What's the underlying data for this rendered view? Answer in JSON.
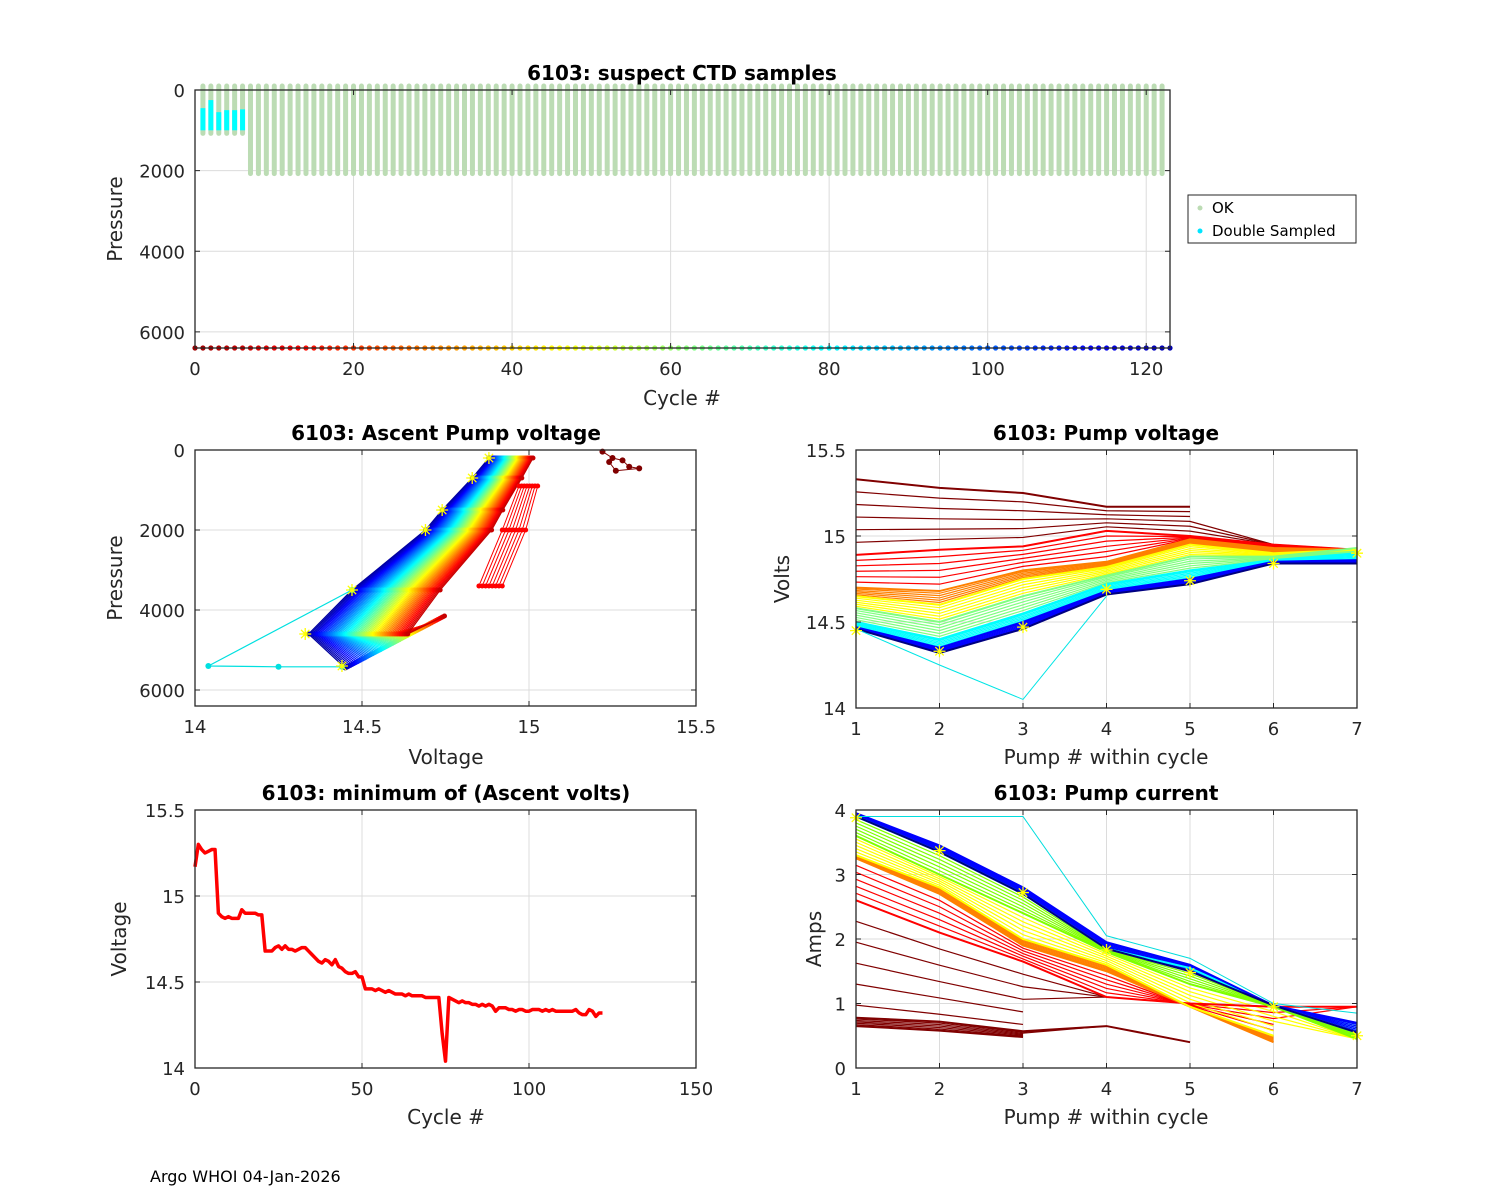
{
  "footer": "Argo WHOI 04-Jan-2026",
  "chart_data": [
    {
      "id": "suspect",
      "type": "bar",
      "title": "6103: suspect CTD samples",
      "xlabel": "Cycle #",
      "ylabel": "Pressure",
      "xlim": [
        0,
        123
      ],
      "ylim": [
        0,
        6400
      ],
      "y_reversed": true,
      "xticks": [
        0,
        20,
        40,
        60,
        80,
        100,
        120
      ],
      "yticks": [
        0,
        2000,
        4000,
        6000
      ],
      "grid": true,
      "legend": {
        "position": "outside-right",
        "entries": [
          {
            "label": "OK",
            "color": "#bcdcb4"
          },
          {
            "label": "Double Sampled",
            "color": "#00ffff"
          }
        ]
      },
      "ok_profiles": {
        "first_cycle": 1,
        "last_cycle": 122,
        "pressure_range": [
          0,
          2000
        ],
        "partial_cycles_max_pressure": 1000,
        "partial_cycles": [
          1,
          2,
          3,
          4,
          5,
          6
        ]
      },
      "double_sampled": [
        {
          "cycle": 1,
          "pressure_range": [
            450,
            1000
          ]
        },
        {
          "cycle": 2,
          "pressure_range": [
            250,
            1000
          ]
        },
        {
          "cycle": 3,
          "pressure_range": [
            550,
            1000
          ]
        },
        {
          "cycle": 4,
          "pressure_range": [
            500,
            1000
          ]
        },
        {
          "cycle": 5,
          "pressure_range": [
            500,
            1000
          ]
        },
        {
          "cycle": 6,
          "pressure_range": [
            480,
            1000
          ]
        }
      ],
      "cycle_color_markers": {
        "pressure": 6400,
        "cycles": [
          0,
          123
        ],
        "colormap": "jet-reversed"
      }
    },
    {
      "id": "ascent",
      "type": "line",
      "title": "6103: Ascent Pump voltage",
      "xlabel": "Voltage",
      "ylabel": "Pressure",
      "xlim": [
        14,
        15.5
      ],
      "ylim": [
        0,
        6400
      ],
      "y_reversed": true,
      "xticks": [
        14,
        14.5,
        15,
        15.5
      ],
      "xtick_labels": [
        "14",
        "14.5",
        "15",
        "15.5"
      ],
      "yticks": [
        0,
        2000,
        4000,
        6000
      ],
      "grid": true,
      "yellow_star_points": [
        [
          14.88,
          200
        ],
        [
          14.83,
          700
        ],
        [
          14.74,
          1500
        ],
        [
          14.69,
          2000
        ],
        [
          14.47,
          3500
        ],
        [
          14.33,
          4600
        ],
        [
          14.44,
          5400
        ]
      ],
      "family_note": "one line per cycle, colored by cycle number (jet colormap, red=early, blue=late)",
      "outlier_cyan": [
        [
          14.44,
          5420
        ],
        [
          14.25,
          5420
        ],
        [
          14.04,
          5400
        ],
        [
          14.47,
          3500
        ]
      ],
      "early_dark_red_cluster": {
        "voltage_range": [
          15.22,
          15.33
        ],
        "pressure_range": [
          0,
          550
        ]
      }
    },
    {
      "id": "pumpvolt",
      "type": "line",
      "title": "6103: Pump voltage",
      "xlabel": "Pump # within cycle",
      "ylabel": "Volts",
      "xlim": [
        1,
        7
      ],
      "ylim": [
        14,
        15.5
      ],
      "xticks": [
        1,
        2,
        3,
        4,
        5,
        6,
        7
      ],
      "yticks": [
        14,
        14.5,
        15,
        15.5
      ],
      "ytick_labels": [
        "14",
        "14.5",
        "15",
        "15.5"
      ],
      "grid": true,
      "x": [
        1,
        2,
        3,
        4,
        5,
        6,
        7
      ],
      "representative_series": [
        {
          "name": "early (dark red)",
          "color": "#800000",
          "values": [
            15.33,
            15.28,
            15.25,
            15.17,
            15.17,
            null,
            null
          ]
        },
        {
          "name": "red group",
          "color": "#ff0000",
          "values": [
            14.89,
            14.92,
            14.94,
            15.03,
            15.0,
            14.95,
            14.92
          ]
        },
        {
          "name": "orange group",
          "color": "#ff8000",
          "values": [
            14.7,
            14.68,
            14.8,
            14.85,
            14.98,
            14.93,
            14.92
          ]
        },
        {
          "name": "yellow group",
          "color": "#ffff00",
          "values": [
            14.65,
            14.6,
            14.75,
            14.82,
            14.95,
            14.9,
            14.92
          ]
        },
        {
          "name": "green group",
          "color": "#80ff80",
          "values": [
            14.58,
            14.5,
            14.65,
            14.77,
            14.88,
            14.88,
            14.93
          ]
        },
        {
          "name": "cyan group",
          "color": "#00ffff",
          "values": [
            14.5,
            14.4,
            14.55,
            14.72,
            14.8,
            14.86,
            14.9
          ]
        },
        {
          "name": "blue group",
          "color": "#0000ff",
          "values": [
            14.47,
            14.35,
            14.5,
            14.68,
            14.75,
            14.85,
            14.86
          ]
        },
        {
          "name": "late (navy)",
          "color": "#000080",
          "values": [
            14.46,
            14.32,
            14.46,
            14.66,
            14.72,
            14.84,
            14.84
          ]
        },
        {
          "name": "cyan outlier",
          "color": "#00e5e5",
          "values": [
            14.46,
            14.25,
            14.05,
            14.65,
            null,
            null,
            null
          ]
        }
      ],
      "yellow_star_points": [
        [
          1,
          14.45
        ],
        [
          2,
          14.33
        ],
        [
          3,
          14.47
        ],
        [
          4,
          14.69
        ],
        [
          5,
          14.74
        ],
        [
          6,
          14.84
        ],
        [
          7,
          14.9
        ]
      ]
    },
    {
      "id": "minvolt",
      "type": "line",
      "title": "6103: minimum of (Ascent volts)",
      "xlabel": "Cycle #",
      "ylabel": "Voltage",
      "xlim": [
        0,
        150
      ],
      "ylim": [
        14,
        15.5
      ],
      "xticks": [
        0,
        50,
        100,
        150
      ],
      "yticks": [
        14,
        14.5,
        15,
        15.5
      ],
      "ytick_labels": [
        "14",
        "14.5",
        "15",
        "15.5"
      ],
      "grid": true,
      "color": "#ff0000",
      "x": [
        0,
        1,
        2,
        3,
        4,
        5,
        6,
        7,
        8,
        9,
        10,
        11,
        12,
        13,
        14,
        15,
        16,
        17,
        18,
        19,
        20,
        21,
        22,
        23,
        24,
        25,
        26,
        27,
        28,
        29,
        30,
        31,
        32,
        33,
        34,
        35,
        36,
        37,
        38,
        39,
        40,
        41,
        42,
        43,
        44,
        45,
        46,
        47,
        48,
        49,
        50,
        51,
        52,
        53,
        54,
        55,
        56,
        57,
        58,
        59,
        60,
        61,
        62,
        63,
        64,
        65,
        66,
        67,
        68,
        69,
        70,
        71,
        72,
        73,
        74,
        75,
        76,
        77,
        78,
        79,
        80,
        81,
        82,
        83,
        84,
        85,
        86,
        87,
        88,
        89,
        90,
        91,
        92,
        93,
        94,
        95,
        96,
        97,
        98,
        99,
        100,
        101,
        102,
        103,
        104,
        105,
        106,
        107,
        108,
        109,
        110,
        111,
        112,
        113,
        114,
        115,
        116,
        117,
        118,
        119,
        120,
        121,
        122
      ],
      "values": [
        15.17,
        15.3,
        15.27,
        15.25,
        15.26,
        15.27,
        15.27,
        14.9,
        14.88,
        14.87,
        14.88,
        14.87,
        14.87,
        14.87,
        14.92,
        14.9,
        14.9,
        14.9,
        14.9,
        14.89,
        14.89,
        14.68,
        14.68,
        14.68,
        14.7,
        14.71,
        14.69,
        14.71,
        14.69,
        14.69,
        14.68,
        14.69,
        14.7,
        14.7,
        14.68,
        14.66,
        14.64,
        14.62,
        14.61,
        14.63,
        14.62,
        14.6,
        14.63,
        14.59,
        14.58,
        14.56,
        14.55,
        14.55,
        14.56,
        14.53,
        14.53,
        14.46,
        14.46,
        14.46,
        14.45,
        14.46,
        14.45,
        14.44,
        14.45,
        14.44,
        14.43,
        14.43,
        14.43,
        14.42,
        14.43,
        14.42,
        14.42,
        14.42,
        14.42,
        14.41,
        14.41,
        14.41,
        14.41,
        14.41,
        14.2,
        14.04,
        14.41,
        14.4,
        14.39,
        14.38,
        14.39,
        14.38,
        14.38,
        14.37,
        14.37,
        14.36,
        14.37,
        14.36,
        14.37,
        14.36,
        14.33,
        14.35,
        14.35,
        14.35,
        14.34,
        14.34,
        14.33,
        14.34,
        14.34,
        14.33,
        14.33,
        14.34,
        14.34,
        14.34,
        14.33,
        14.34,
        14.33,
        14.34,
        14.33,
        14.33,
        14.33,
        14.33,
        14.33,
        14.33,
        14.34,
        14.32,
        14.31,
        14.31,
        14.34,
        14.33,
        14.3,
        14.32,
        14.32
      ]
    },
    {
      "id": "pumpcurr",
      "type": "line",
      "title": "6103: Pump current",
      "xlabel": "Pump # within cycle",
      "ylabel": "Amps",
      "xlim": [
        1,
        7
      ],
      "ylim": [
        0,
        4
      ],
      "xticks": [
        1,
        2,
        3,
        4,
        5,
        6,
        7
      ],
      "yticks": [
        0,
        1,
        2,
        3,
        4
      ],
      "grid": true,
      "x": [
        1,
        2,
        3,
        4,
        5,
        6,
        7
      ],
      "representative_series": [
        {
          "name": "early (dark red)",
          "color": "#800000",
          "values": [
            0.78,
            0.72,
            0.57,
            0.65,
            0.4,
            null,
            null
          ]
        },
        {
          "name": "early (dark red) 2",
          "color": "#800000",
          "values": [
            0.65,
            0.58,
            0.48,
            null,
            null,
            null,
            null
          ]
        },
        {
          "name": "red group",
          "color": "#ff0000",
          "values": [
            2.6,
            2.1,
            1.65,
            1.1,
            1.0,
            0.95,
            0.95
          ]
        },
        {
          "name": "orange group",
          "color": "#ff8000",
          "values": [
            3.25,
            2.7,
            1.9,
            1.5,
            0.95,
            0.4,
            null
          ]
        },
        {
          "name": "yellow group",
          "color": "#ffff00",
          "values": [
            3.3,
            2.8,
            2.0,
            1.6,
            0.95,
            0.5,
            null
          ]
        },
        {
          "name": "green group",
          "color": "#80ff00",
          "values": [
            3.6,
            3.0,
            2.4,
            1.8,
            1.3,
            0.95,
            0.45
          ]
        },
        {
          "name": "cyan group",
          "color": "#00ffff",
          "values": [
            3.9,
            3.35,
            2.7,
            1.85,
            1.55,
            0.97,
            0.55
          ]
        },
        {
          "name": "blue group",
          "color": "#0000ff",
          "values": [
            3.95,
            3.45,
            2.8,
            1.95,
            1.6,
            0.97,
            0.7
          ]
        },
        {
          "name": "late (navy)",
          "color": "#000080",
          "values": [
            3.9,
            3.35,
            2.7,
            1.85,
            1.5,
            0.97,
            0.55
          ]
        },
        {
          "name": "cyan outlier",
          "color": "#00dddd",
          "values": [
            3.9,
            3.9,
            3.9,
            2.05,
            1.7,
            1.0,
            0.85
          ]
        }
      ],
      "yellow_star_points": [
        [
          1,
          3.88
        ],
        [
          2,
          3.37
        ],
        [
          3,
          2.72
        ],
        [
          4,
          1.83
        ],
        [
          5,
          1.48
        ],
        [
          6,
          0.95
        ],
        [
          7,
          0.5
        ]
      ]
    }
  ]
}
